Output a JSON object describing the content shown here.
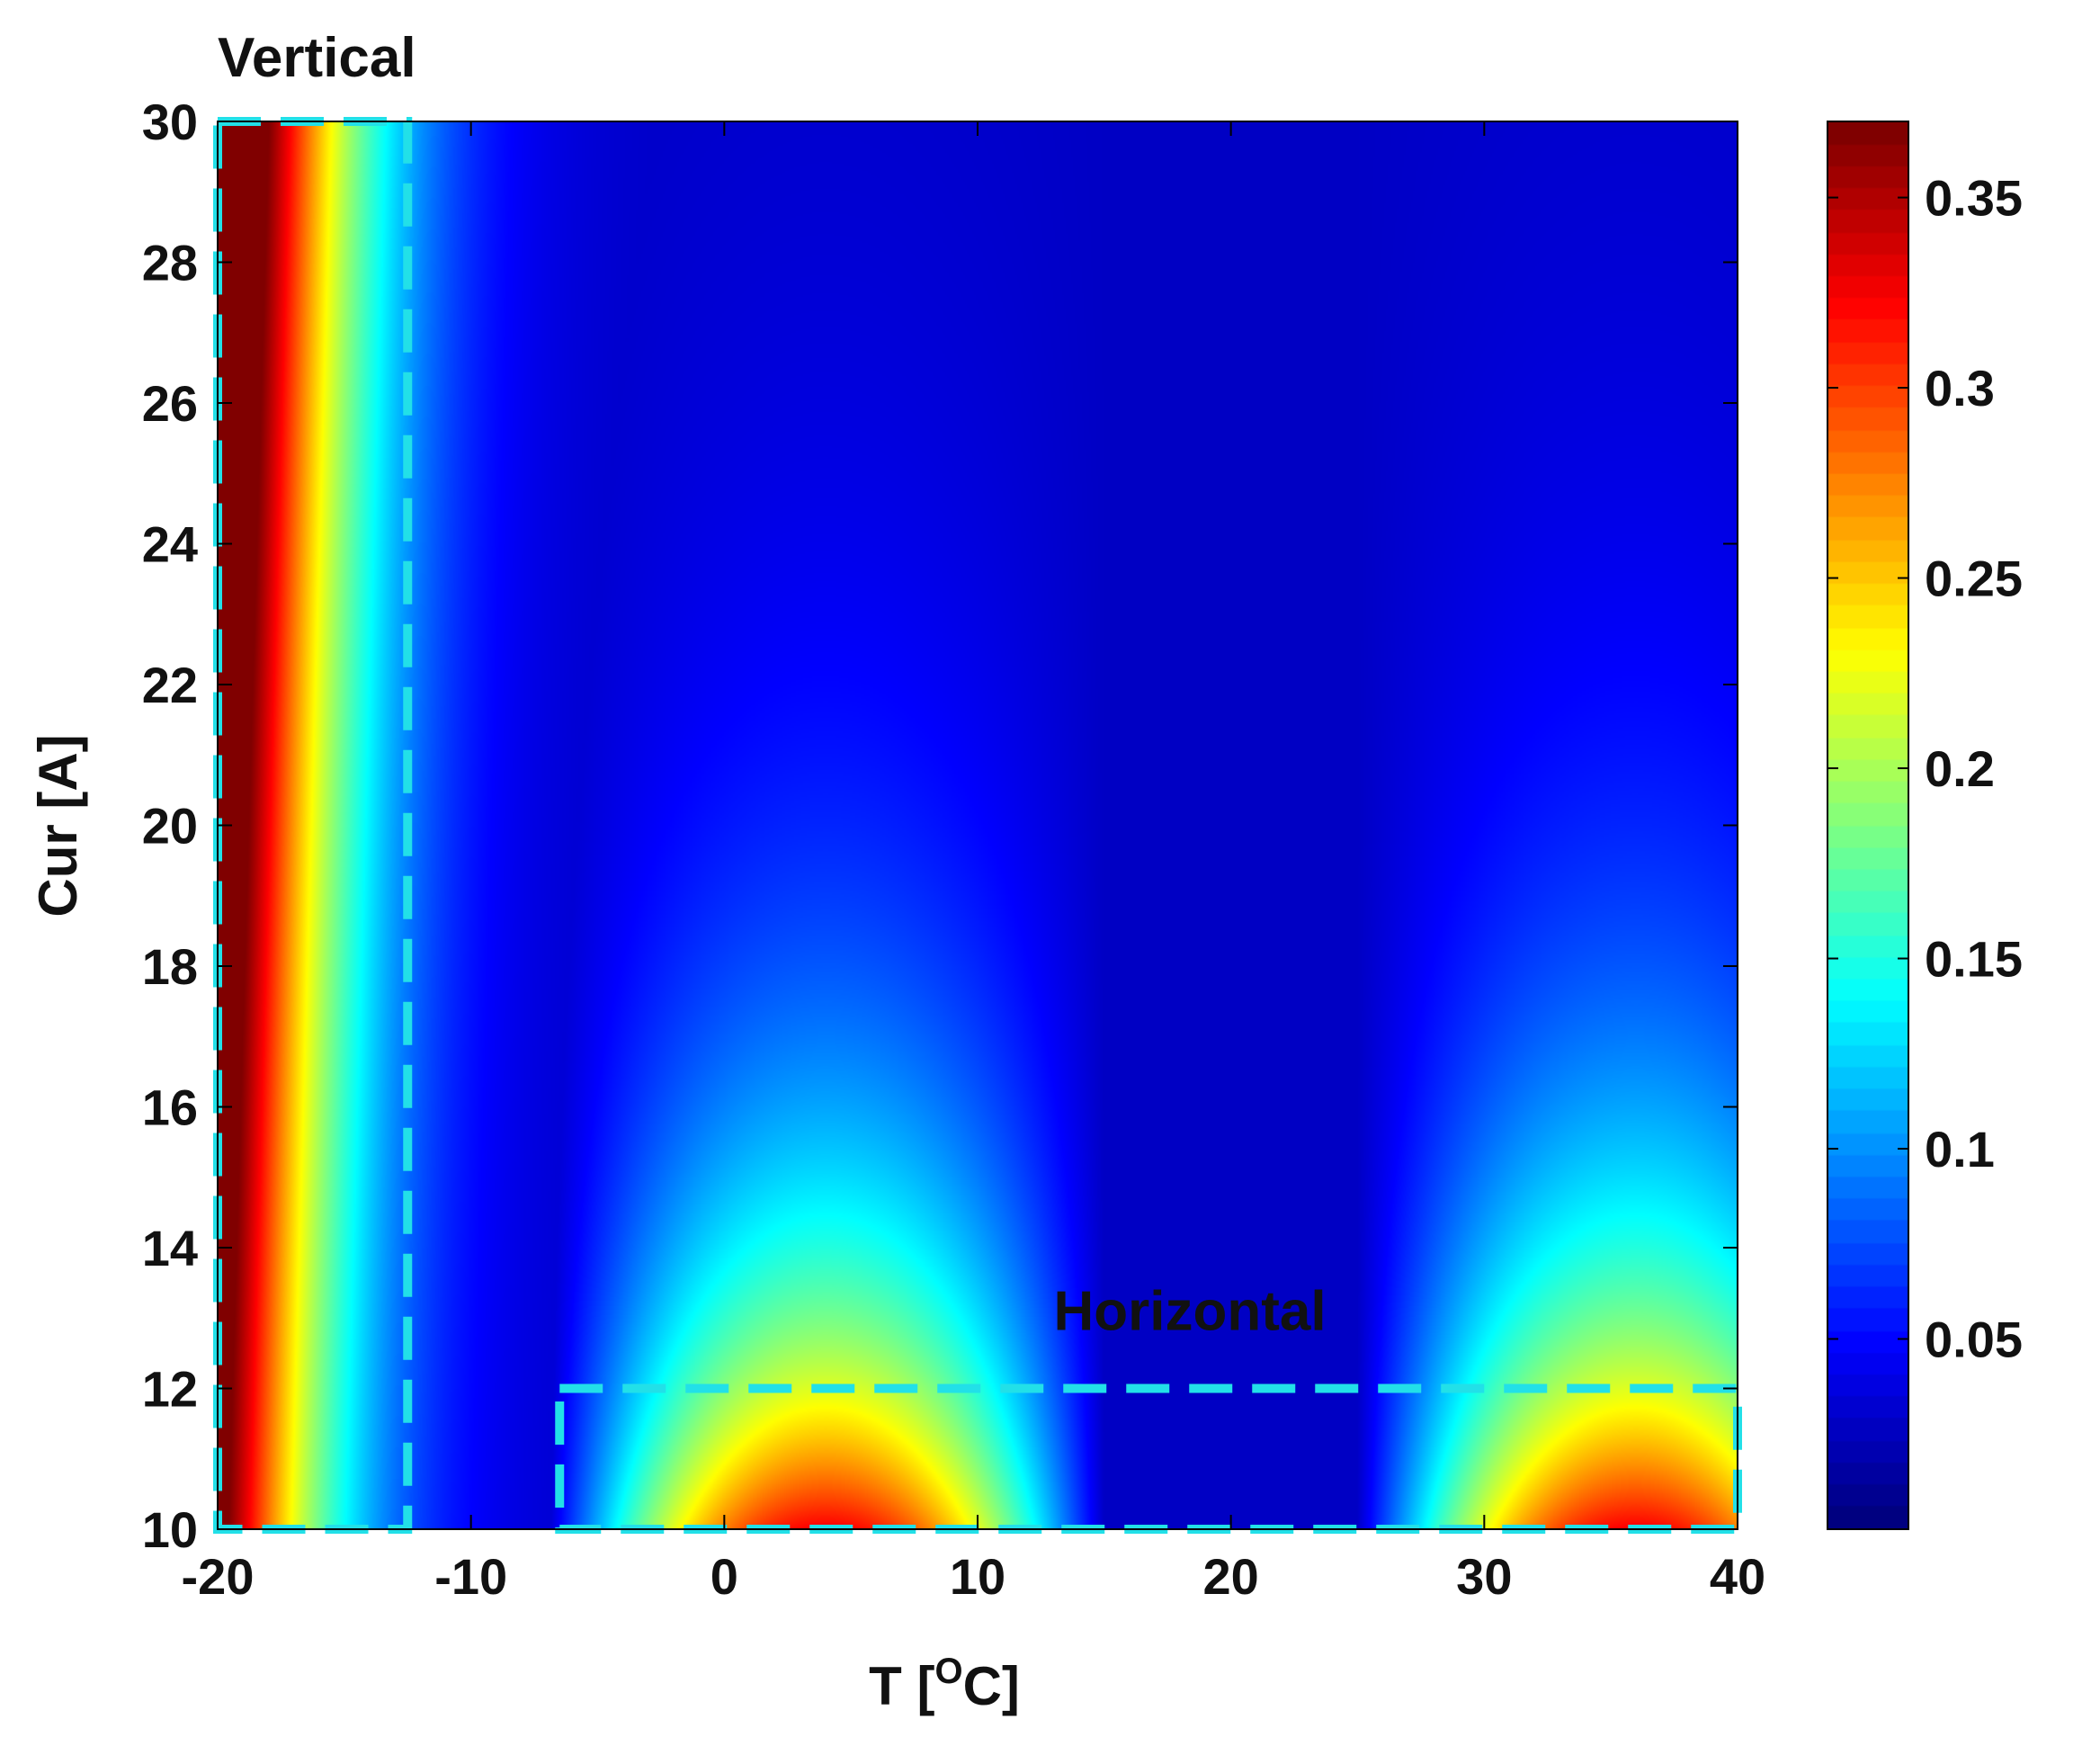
{
  "chart_data": {
    "type": "heatmap",
    "title": "",
    "xlabel_main": "T [",
    "xlabel_sup": "O",
    "xlabel_end": "C]",
    "ylabel": "Cur [A]",
    "xlim": [
      -20,
      40
    ],
    "ylim": [
      10,
      30
    ],
    "x_ticks": [
      -20,
      -10,
      0,
      10,
      20,
      30,
      40
    ],
    "x_tick_labels": [
      "-20",
      "-10",
      "0",
      "10",
      "20",
      "30",
      "40"
    ],
    "y_ticks": [
      10,
      12,
      14,
      16,
      18,
      20,
      22,
      24,
      26,
      28,
      30
    ],
    "y_tick_labels": [
      "10",
      "12",
      "14",
      "16",
      "18",
      "20",
      "22",
      "24",
      "26",
      "28",
      "30"
    ],
    "colormap": "jet",
    "colorbar": {
      "clim": [
        0,
        0.37
      ],
      "ticks": [
        0.05,
        0.1,
        0.15,
        0.2,
        0.25,
        0.3,
        0.35
      ],
      "tick_labels": [
        "0.05",
        "0.1",
        "0.15",
        "0.2",
        "0.25",
        "0.3",
        "0.35"
      ]
    },
    "surface_model": {
      "vertical_band": {
        "peak_value": 0.36,
        "peak_x": -20,
        "decay_x_scale": 4.5,
        "drift_per_A": 0.08
      },
      "horizontal_humps": {
        "peak_value": 0.3,
        "centers_x": [
          4,
          36
        ],
        "half_width_x": 11,
        "decay_y_scale": 4.6
      },
      "background": 0.025
    },
    "regions": [
      {
        "label": "Vertical",
        "x_range": [
          -20,
          -12.5
        ],
        "y_range": [
          10,
          30
        ],
        "line_color": "#22E0E8"
      },
      {
        "label": "Horizontal",
        "x_range": [
          -6.5,
          40
        ],
        "y_range": [
          10,
          12
        ],
        "line_color": "#22E0E8"
      }
    ]
  }
}
